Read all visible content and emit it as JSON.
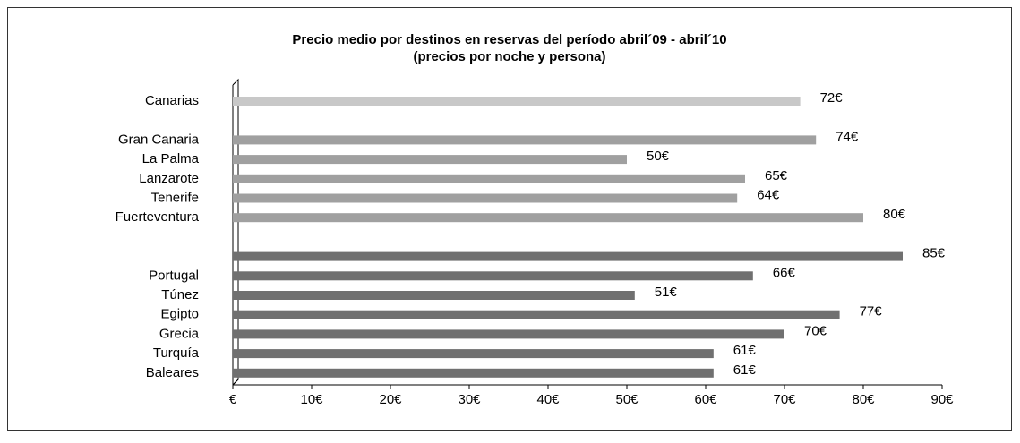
{
  "chart_data": {
    "type": "hbar",
    "title": "Precio medio por destinos en reservas del período abril´09 - abril´10",
    "subtitle": "(precios por noche y persona)",
    "categories": [
      "Canarias",
      null,
      "Gran Canaria",
      "La Palma",
      "Lanzarote",
      "Tenerife",
      "Fuerteventura",
      null,
      null,
      "Portugal",
      "Túnez",
      "Egipto",
      "Grecia",
      "Turquía",
      "Baleares"
    ],
    "values": [
      72,
      null,
      74,
      50,
      65,
      64,
      80,
      null,
      85,
      66,
      51,
      77,
      70,
      61,
      61
    ],
    "value_labels": [
      "72€",
      null,
      "74€",
      "50€",
      "65€",
      "64€",
      "80€",
      null,
      "85€",
      "66€",
      "51€",
      "77€",
      "70€",
      "61€",
      "61€"
    ],
    "colors": [
      "#c8c8c8",
      null,
      "#a0a0a0",
      "#a0a0a0",
      "#a0a0a0",
      "#a0a0a0",
      "#a0a0a0",
      null,
      "#707070",
      "#707070",
      "#707070",
      "#707070",
      "#707070",
      "#707070",
      "#707070"
    ],
    "xlim": [
      0,
      90
    ],
    "xticks": [
      {
        "value": 0,
        "label": "€"
      },
      {
        "value": 10,
        "label": "10€"
      },
      {
        "value": 20,
        "label": "20€"
      },
      {
        "value": 30,
        "label": "30€"
      },
      {
        "value": 40,
        "label": "40€"
      },
      {
        "value": 50,
        "label": "50€"
      },
      {
        "value": 60,
        "label": "60€"
      },
      {
        "value": 70,
        "label": "70€"
      },
      {
        "value": 80,
        "label": "80€"
      },
      {
        "value": 90,
        "label": "90€"
      }
    ],
    "grid": false
  }
}
